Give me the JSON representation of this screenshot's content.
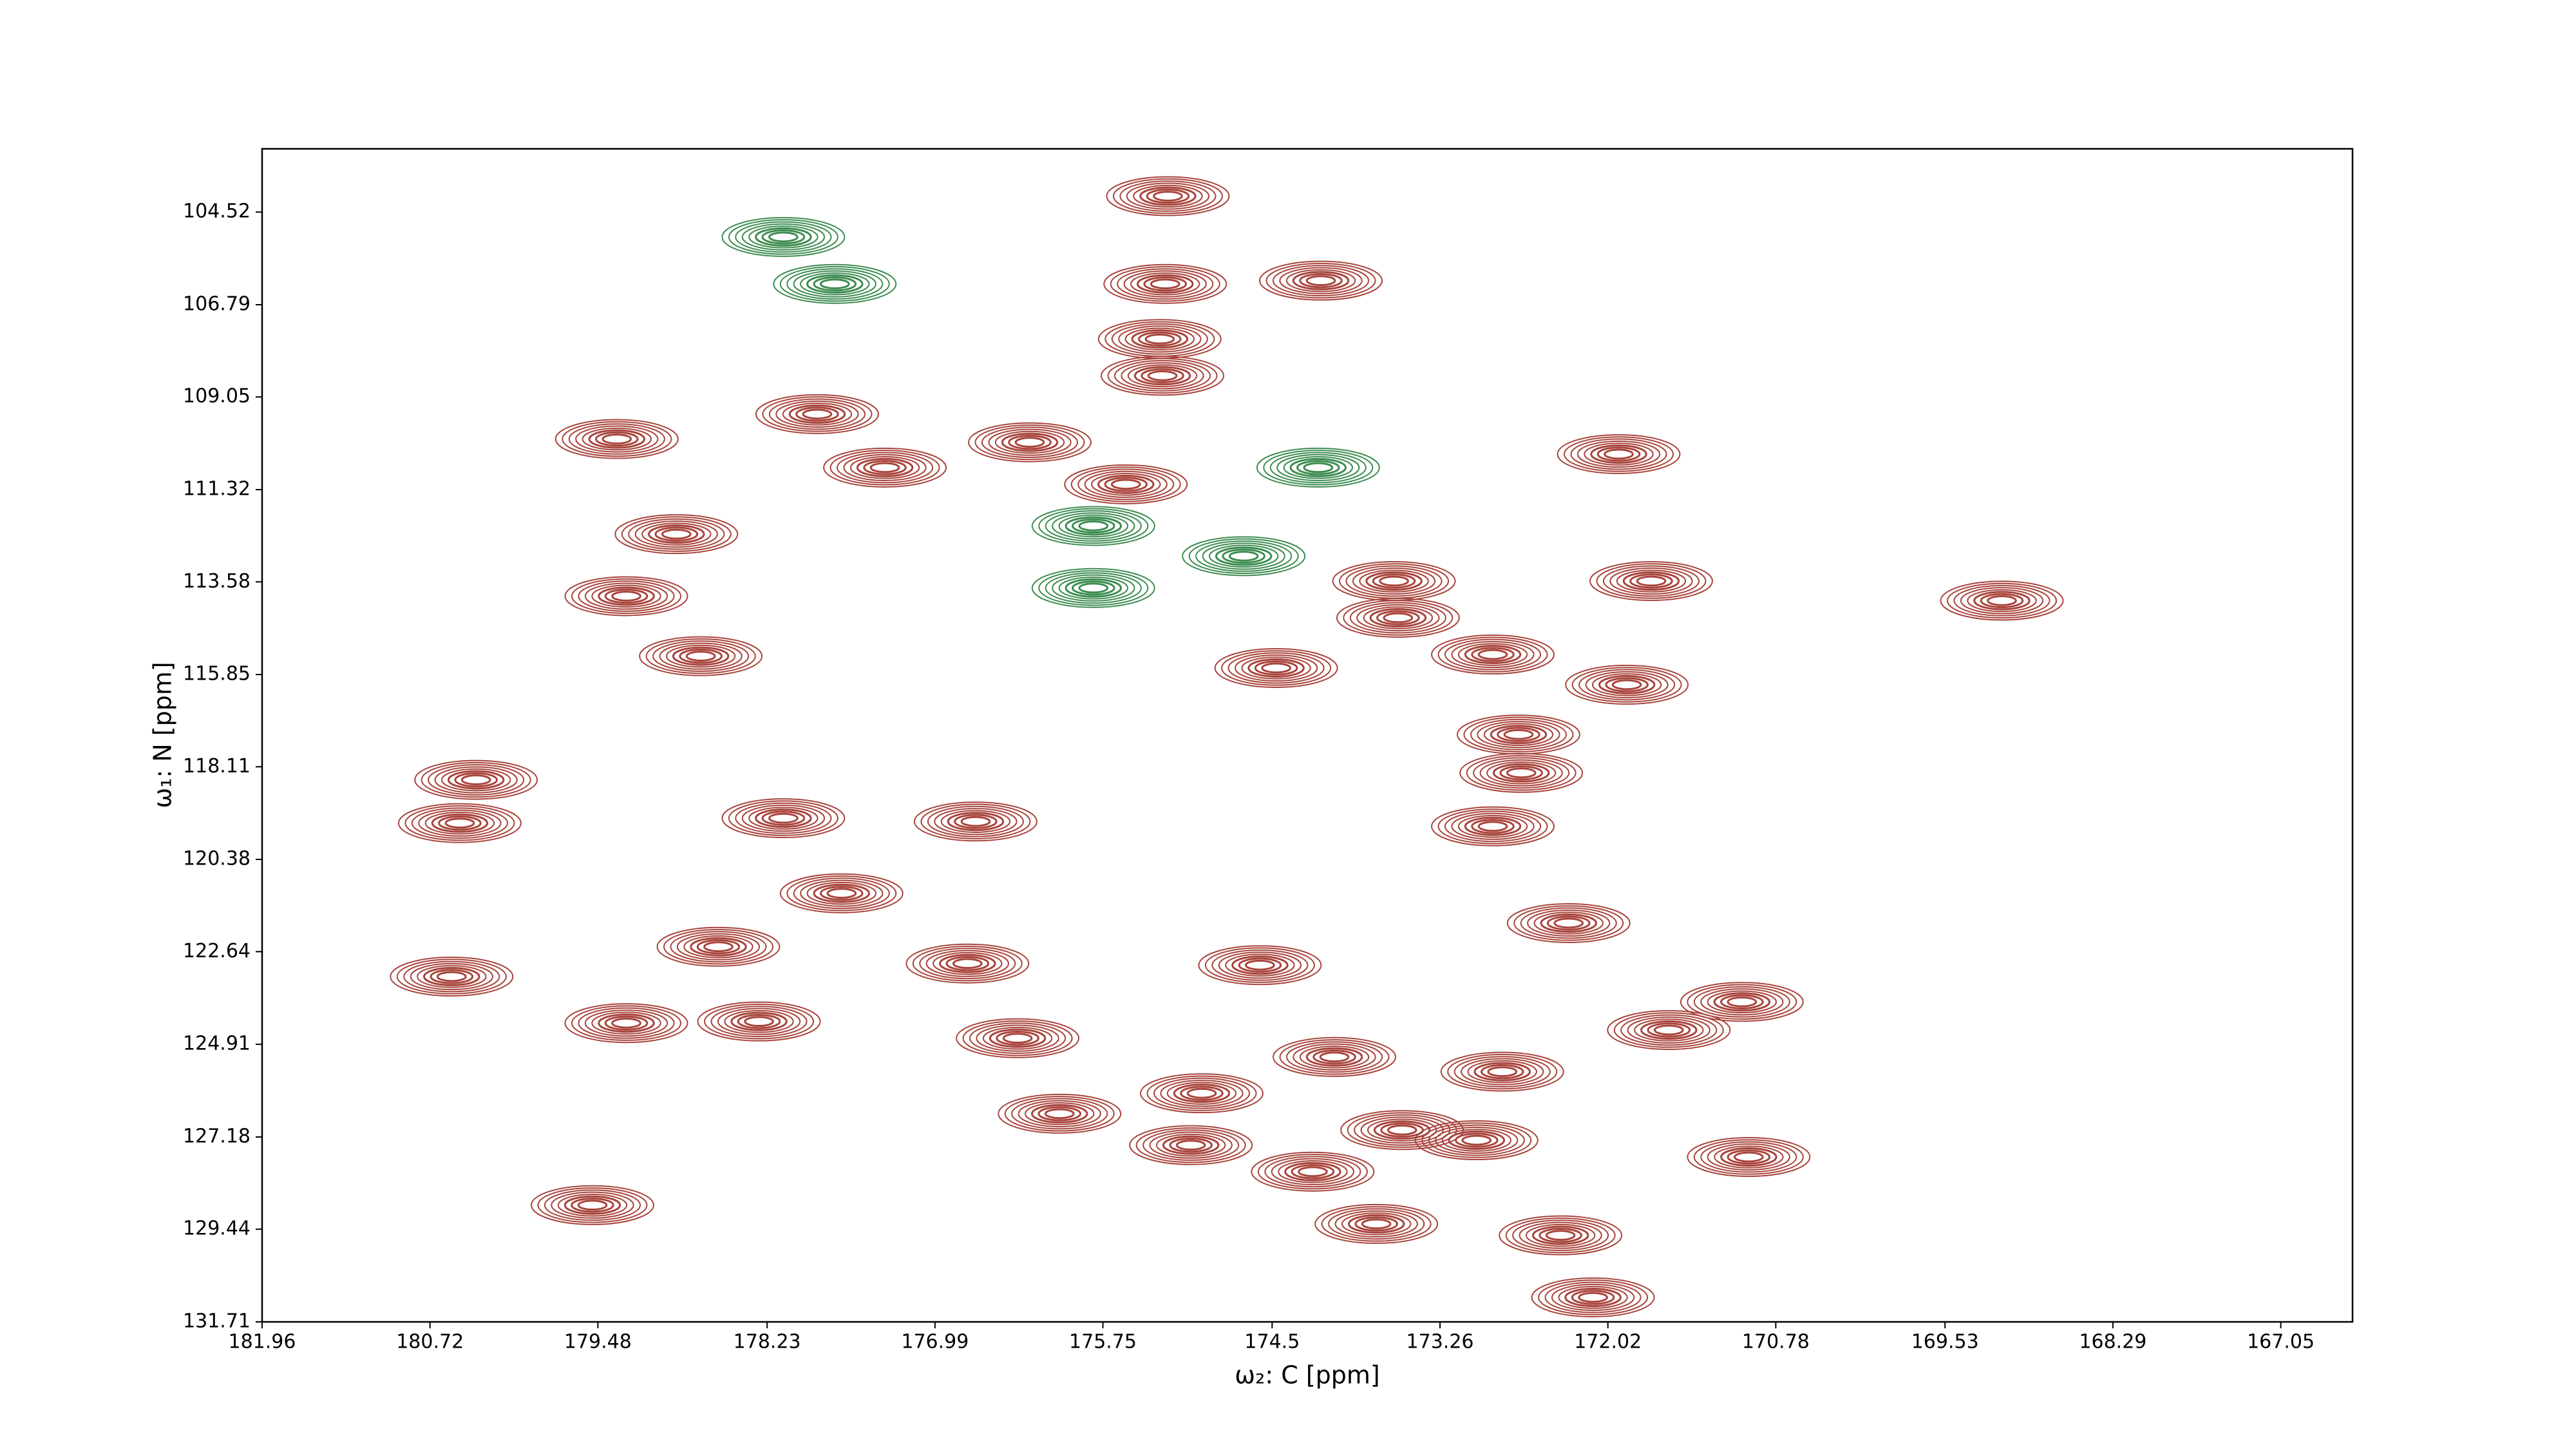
{
  "chart_data": {
    "type": "contour",
    "xlabel": "ω₂: C [ppm]",
    "ylabel": "ω₁: N [ppm]",
    "xlim": [
      181.96,
      166.52
    ],
    "ylim": [
      131.71,
      102.97
    ],
    "xticks": [
      181.96,
      180.72,
      179.48,
      178.23,
      176.99,
      175.75,
      174.5,
      173.26,
      172.02,
      170.78,
      169.53,
      168.29,
      167.05
    ],
    "yticks": [
      104.52,
      106.79,
      109.05,
      111.32,
      113.58,
      115.85,
      118.11,
      120.38,
      122.64,
      124.91,
      127.18,
      129.44,
      131.71
    ],
    "series": [
      {
        "color": "#a8443c",
        "x": [
          175.27,
          175.29,
          174.14,
          175.33,
          175.31,
          177.86,
          179.34,
          176.29,
          177.36,
          175.58,
          171.94,
          178.9,
          179.27,
          173.6,
          171.7,
          173.57,
          172.87,
          178.72,
          174.47,
          171.88,
          172.68,
          180.38,
          172.66,
          180.5,
          172.87,
          176.69,
          177.68,
          172.31,
          178.59,
          176.75,
          174.59,
          180.56,
          171.03,
          179.27,
          178.29,
          176.38,
          171.57,
          174.04,
          172.8,
          176.07,
          175.02,
          173.54,
          175.1,
          172.99,
          174.2,
          179.52,
          170.98,
          173.73,
          172.37,
          172.13,
          178.11,
          169.11
        ],
        "y": [
          104.13,
          106.28,
          106.2,
          107.63,
          108.53,
          109.47,
          110.08,
          110.16,
          110.78,
          111.19,
          110.45,
          112.41,
          113.93,
          113.56,
          113.56,
          114.46,
          115.36,
          115.4,
          115.69,
          116.1,
          117.32,
          118.43,
          118.26,
          119.49,
          119.57,
          119.45,
          121.21,
          121.94,
          122.52,
          122.93,
          122.97,
          123.25,
          123.87,
          124.39,
          124.35,
          124.76,
          124.56,
          125.22,
          125.58,
          126.61,
          126.11,
          127.01,
          127.38,
          127.26,
          128.03,
          128.85,
          127.67,
          129.31,
          129.59,
          131.11,
          119.37,
          114.04
        ]
      },
      {
        "color": "#3d8c50",
        "x": [
          175.82,
          175.82,
          174.16,
          178.11,
          174.71,
          177.73
        ],
        "y": [
          112.21,
          113.73,
          110.78,
          105.13,
          112.95,
          106.28
        ]
      }
    ]
  }
}
